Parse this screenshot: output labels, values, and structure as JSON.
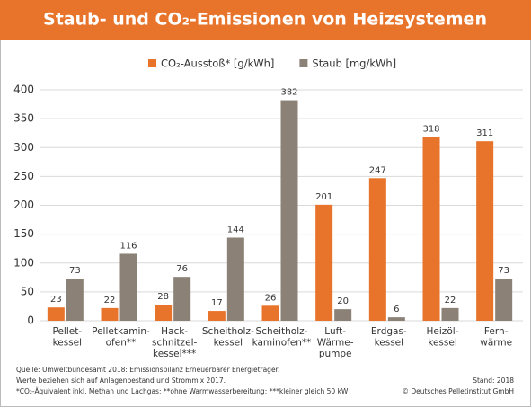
{
  "chart_data": {
    "type": "bar",
    "title": "Staub- und CO₂-Emissionen von Heizsystemen",
    "categories": [
      [
        "Pellet-",
        "kessel"
      ],
      [
        "Pelletkamin-",
        "ofen**"
      ],
      [
        "Hack-",
        "schnitzel-",
        "kessel***"
      ],
      [
        "Scheitholz-",
        "kessel"
      ],
      [
        "Scheitholz-",
        "kaminofen**"
      ],
      [
        "Luft-",
        "Wärme-",
        "pumpe"
      ],
      [
        "Erdgas-",
        "kessel"
      ],
      [
        "Heizöl-",
        "kessel"
      ],
      [
        "Fern-",
        "wärme"
      ]
    ],
    "series": [
      {
        "name": "CO₂-Ausstoß* [g/kWh]",
        "color": "#e8732a",
        "values": [
          23,
          22,
          28,
          17,
          26,
          201,
          247,
          318,
          311
        ]
      },
      {
        "name": "Staub [mg/kWh]",
        "color": "#8c8176",
        "values": [
          73,
          116,
          76,
          144,
          382,
          20,
          6,
          22,
          73
        ]
      }
    ],
    "ylim": [
      0,
      400
    ],
    "yticks": [
      0,
      50,
      100,
      150,
      200,
      250,
      300,
      350,
      400
    ],
    "grid": true,
    "notes": [
      "Quelle: Umweltbundesamt 2018: Emissionsbilanz Erneuerbarer Energieträger.",
      "Werte beziehen sich auf Anlagenbestand und Strommix 2017.",
      "*CO₂-Äquivalent inkl. Methan und Lachgas; **ohne Warmwasserbereitung; ***kleiner gleich 50 kW"
    ],
    "stand": "Stand: 2018",
    "copyright": "© Deutsches Pelletinstitut GmbH"
  }
}
